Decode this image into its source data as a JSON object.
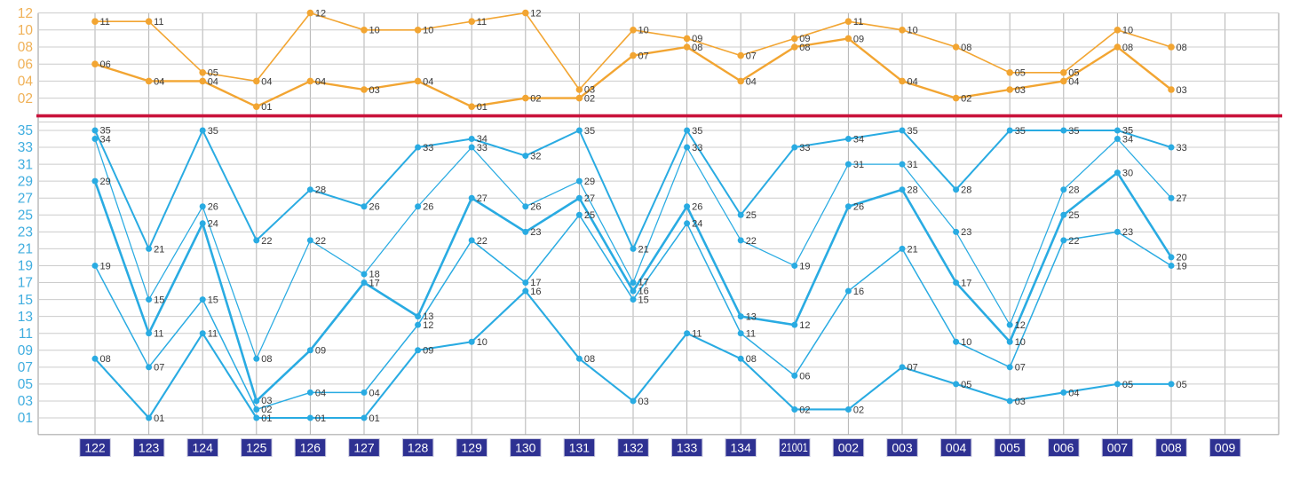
{
  "chart_data": {
    "type": "line",
    "title": "",
    "legend": "none",
    "grid": true,
    "point_label_format": "two-digit-zero-padded",
    "x_labels": [
      "122",
      "123",
      "124",
      "125",
      "126",
      "127",
      "128",
      "129",
      "130",
      "131",
      "132",
      "133",
      "134",
      "21001",
      "002",
      "003",
      "004",
      "005",
      "006",
      "007",
      "008",
      "009"
    ],
    "back_zone": {
      "description": "upper panel, numbers 01-12, two numbers per draw",
      "y_tick_labels": [
        "12",
        "10",
        "08",
        "06",
        "04",
        "02"
      ],
      "y_range": [
        0,
        12
      ],
      "series": [
        {
          "name": "back-number-high",
          "values": [
            11,
            11,
            5,
            4,
            12,
            10,
            10,
            11,
            12,
            3,
            10,
            9,
            7,
            9,
            11,
            10,
            8,
            5,
            5,
            10,
            8,
            null
          ]
        },
        {
          "name": "back-number-low",
          "values": [
            6,
            4,
            4,
            1,
            4,
            3,
            4,
            1,
            2,
            2,
            7,
            8,
            4,
            8,
            9,
            4,
            2,
            3,
            4,
            8,
            3,
            null
          ]
        }
      ]
    },
    "front_zone": {
      "description": "lower panel, numbers 01-35, five numbers per draw",
      "y_tick_labels": [
        "35",
        "33",
        "31",
        "29",
        "27",
        "25",
        "23",
        "21",
        "19",
        "17",
        "15",
        "13",
        "11",
        "09",
        "07",
        "05",
        "03",
        "01"
      ],
      "y_range": [
        1,
        35
      ],
      "series": [
        {
          "name": "front-number-1",
          "values": [
            35,
            21,
            35,
            22,
            28,
            26,
            33,
            34,
            32,
            35,
            21,
            35,
            25,
            33,
            34,
            35,
            28,
            35,
            35,
            35,
            33,
            null
          ]
        },
        {
          "name": "front-number-2",
          "values": [
            34,
            15,
            26,
            8,
            22,
            18,
            26,
            33,
            26,
            29,
            17,
            33,
            22,
            19,
            31,
            31,
            23,
            12,
            28,
            34,
            27,
            null
          ]
        },
        {
          "name": "front-number-3",
          "values": [
            29,
            11,
            24,
            3,
            9,
            17,
            13,
            27,
            23,
            27,
            16,
            26,
            13,
            12,
            26,
            28,
            17,
            10,
            25,
            30,
            20,
            null
          ]
        },
        {
          "name": "front-number-4",
          "values": [
            19,
            7,
            15,
            2,
            4,
            4,
            12,
            22,
            17,
            25,
            15,
            24,
            11,
            6,
            16,
            21,
            10,
            7,
            22,
            23,
            19,
            null
          ]
        },
        {
          "name": "front-number-5",
          "values": [
            8,
            1,
            11,
            1,
            1,
            1,
            9,
            10,
            16,
            8,
            3,
            11,
            8,
            2,
            2,
            7,
            5,
            3,
            4,
            5,
            5,
            null
          ]
        }
      ]
    },
    "colors": {
      "front_line": "#29abe2",
      "back_line": "#f2a532",
      "front_axis_text": "#3faddf",
      "back_axis_text": "#f0b157",
      "divider": "#c9123b",
      "x_label_bg": "#2e3192",
      "x_label_text": "#ffffff",
      "point_label": "#383838",
      "grid_h": "#cccccc",
      "grid_v": "#b3b3b3",
      "border": "#aaaaaa"
    }
  }
}
